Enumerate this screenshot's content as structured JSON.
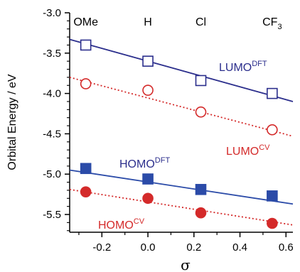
{
  "chart_data": {
    "type": "scatter",
    "xlabel": "σ",
    "ylabel": "Orbital Energy / eV",
    "xlim": [
      -0.34,
      0.63
    ],
    "ylim": [
      -5.72,
      -3.0
    ],
    "xticks": [
      "-0.2",
      "0.0",
      "0.2",
      "0.4",
      "0.6"
    ],
    "xtick_values": [
      -0.2,
      0.0,
      0.2,
      0.4,
      0.6
    ],
    "yticks": [
      "-3.0",
      "-3.5",
      "-4.0",
      "-4.5",
      "-5.0",
      "-5.5"
    ],
    "ytick_values": [
      -3.0,
      -3.5,
      -4.0,
      -4.5,
      -5.0,
      -5.5
    ],
    "substituents": [
      {
        "label": "OMe",
        "sub": "",
        "sigma": -0.27
      },
      {
        "label": "H",
        "sub": "",
        "sigma": 0.0
      },
      {
        "label": "Cl",
        "sub": "",
        "sigma": 0.23
      },
      {
        "label": "CF",
        "sub": "3",
        "sigma": 0.54
      }
    ],
    "series": [
      {
        "name": "LUMO",
        "sup": "DFT",
        "marker": "open-square",
        "color": "#2b2e8c",
        "line": "solid",
        "x": [
          -0.27,
          0.0,
          0.23,
          0.54
        ],
        "y": [
          -3.4,
          -3.6,
          -3.84,
          -4.0
        ],
        "fit": {
          "x": [
            -0.34,
            0.63
          ],
          "y": [
            -3.33,
            -4.1
          ]
        }
      },
      {
        "name": "LUMO",
        "sup": "CV",
        "marker": "open-circle",
        "color": "#d42a2a",
        "line": "dotted",
        "x": [
          -0.27,
          0.0,
          0.23,
          0.54
        ],
        "y": [
          -3.88,
          -3.96,
          -4.23,
          -4.45
        ],
        "fit": {
          "x": [
            -0.34,
            0.63
          ],
          "y": [
            -3.8,
            -4.53
          ]
        }
      },
      {
        "name": "HOMO",
        "sup": "DFT",
        "marker": "filled-square",
        "color": "#2b4ba8",
        "line": "solid",
        "x": [
          -0.27,
          0.0,
          0.23,
          0.54
        ],
        "y": [
          -4.93,
          -5.06,
          -5.19,
          -5.27
        ],
        "fit": {
          "x": [
            -0.34,
            0.63
          ],
          "y": [
            -4.95,
            -5.37
          ]
        }
      },
      {
        "name": "HOMO",
        "sup": "CV",
        "marker": "filled-circle",
        "color": "#d42a2a",
        "line": "dotted",
        "x": [
          -0.27,
          0.0,
          0.23,
          0.54
        ],
        "y": [
          -5.22,
          -5.3,
          -5.48,
          -5.61
        ],
        "fit": {
          "x": [
            -0.34,
            0.63
          ],
          "y": [
            -5.19,
            -5.63
          ]
        }
      }
    ]
  }
}
